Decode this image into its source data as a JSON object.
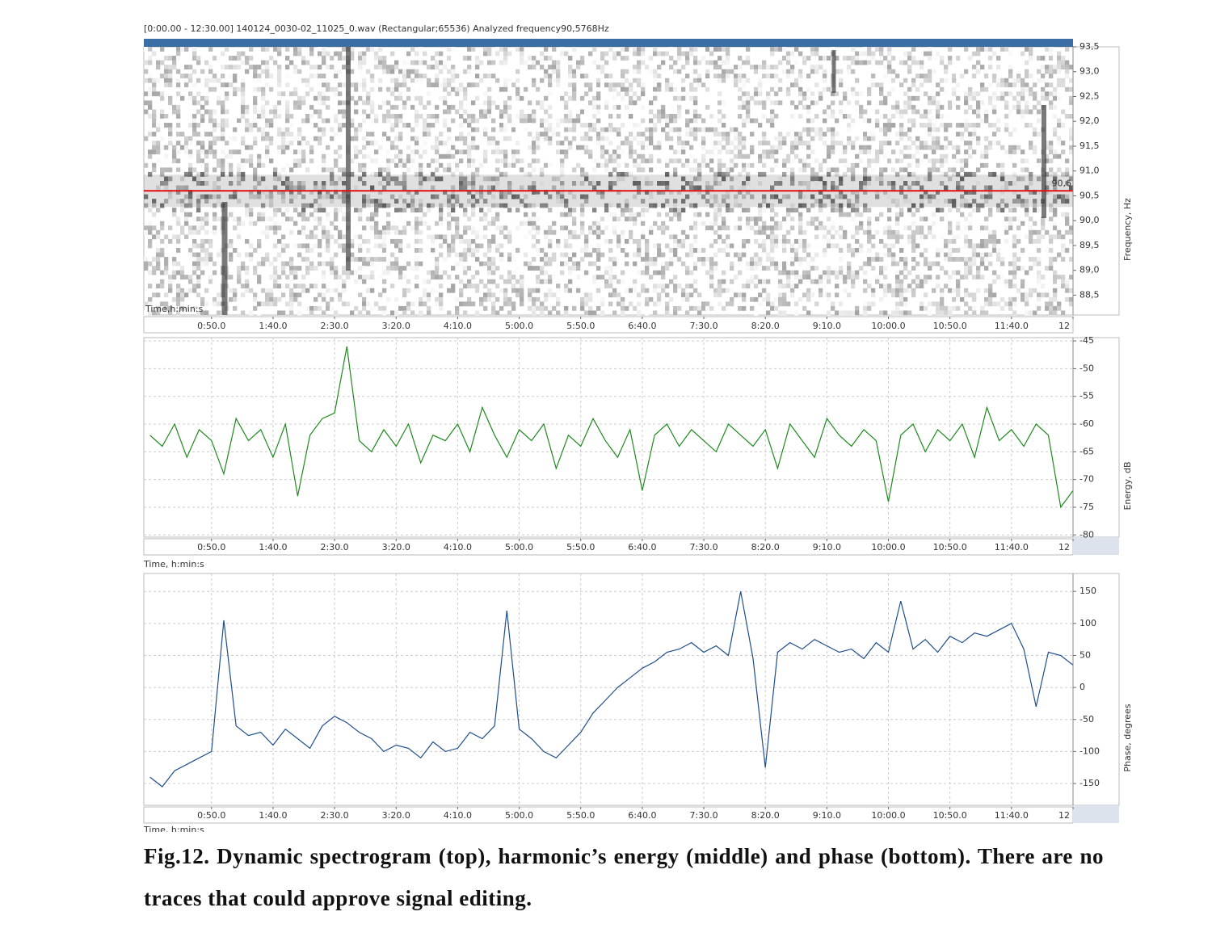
{
  "chart_data": [
    {
      "type": "spectrogram",
      "title": "[0:00.00 - 12:30.00] 140124_0030-02_11025_0.wav (Rectangular;65536)     Analyzed frequency90,5768Hz",
      "xlabel": "Time,h:min:s",
      "ylabel": "Frequency, Hz",
      "xlim": [
        -5,
        750
      ],
      "xticks": [
        {
          "value": 50,
          "label": "0:50.0"
        },
        {
          "value": 100,
          "label": "1:40.0"
        },
        {
          "value": 150,
          "label": "2:30.0"
        },
        {
          "value": 200,
          "label": "3:20.0"
        },
        {
          "value": 250,
          "label": "4:10.0"
        },
        {
          "value": 300,
          "label": "5:00.0"
        },
        {
          "value": 350,
          "label": "5:50.0"
        },
        {
          "value": 400,
          "label": "6:40.0"
        },
        {
          "value": 450,
          "label": "7:30.0"
        },
        {
          "value": 500,
          "label": "8:20.0"
        },
        {
          "value": 550,
          "label": "9:10.0"
        },
        {
          "value": 600,
          "label": "10:00.0"
        },
        {
          "value": 650,
          "label": "10:50.0"
        },
        {
          "value": 700,
          "label": "11:40.0"
        },
        {
          "value": 750,
          "label": "12"
        }
      ],
      "ylim": [
        88.1,
        93.5
      ],
      "yticks": [
        {
          "value": 88.5,
          "label": "88,5"
        },
        {
          "value": 89,
          "label": "89,0"
        },
        {
          "value": 89.5,
          "label": "89,5"
        },
        {
          "value": 90,
          "label": "90,0"
        },
        {
          "value": 90.5,
          "label": "90,5"
        },
        {
          "value": 91,
          "label": "91,0"
        },
        {
          "value": 91.5,
          "label": "91,5"
        },
        {
          "value": 92,
          "label": "92,0"
        },
        {
          "value": 92.5,
          "label": "92,5"
        },
        {
          "value": 93,
          "label": "93,0"
        },
        {
          "value": 93.5,
          "label": "93,5"
        }
      ],
      "marker_value": 90.6,
      "marker_label": "90,6",
      "marker_color": "#e01010"
    },
    {
      "type": "line",
      "xlabel": "Time, h:min:s",
      "ylabel": "Energy, dB",
      "xlim": [
        -5,
        750
      ],
      "xticks": [
        {
          "value": 50,
          "label": "0:50.0"
        },
        {
          "value": 100,
          "label": "1:40.0"
        },
        {
          "value": 150,
          "label": "2:30.0"
        },
        {
          "value": 200,
          "label": "3:20.0"
        },
        {
          "value": 250,
          "label": "4:10.0"
        },
        {
          "value": 300,
          "label": "5:00.0"
        },
        {
          "value": 350,
          "label": "5:50.0"
        },
        {
          "value": 400,
          "label": "6:40.0"
        },
        {
          "value": 450,
          "label": "7:30.0"
        },
        {
          "value": 500,
          "label": "8:20.0"
        },
        {
          "value": 550,
          "label": "9:10.0"
        },
        {
          "value": 600,
          "label": "10:00.0"
        },
        {
          "value": 650,
          "label": "10:50.0"
        },
        {
          "value": 700,
          "label": "11:40.0"
        },
        {
          "value": 750,
          "label": "12"
        }
      ],
      "ylim": [
        -80.4,
        -44.4
      ],
      "yticks": [
        -80,
        -75,
        -70,
        -65,
        -60,
        -55,
        -50,
        -45
      ],
      "grid": true,
      "x": [
        0,
        10,
        20,
        30,
        40,
        50,
        60,
        70,
        80,
        90,
        100,
        110,
        120,
        130,
        140,
        150,
        160,
        170,
        180,
        190,
        200,
        210,
        220,
        230,
        240,
        250,
        260,
        270,
        280,
        290,
        300,
        310,
        320,
        330,
        340,
        350,
        360,
        370,
        380,
        390,
        400,
        410,
        420,
        430,
        440,
        450,
        460,
        470,
        480,
        490,
        500,
        510,
        520,
        530,
        540,
        550,
        560,
        570,
        580,
        590,
        600,
        610,
        620,
        630,
        640,
        650,
        660,
        670,
        680,
        690,
        700,
        710,
        720,
        730,
        740,
        750
      ],
      "series": [
        {
          "color": "#1e8a1e",
          "values": [
            -62,
            -64,
            -60,
            -66,
            -61,
            -63,
            -69,
            -59,
            -63,
            -61,
            -66,
            -60,
            -73,
            -62,
            -59,
            -58,
            -46,
            -63,
            -65,
            -61,
            -64,
            -60,
            -67,
            -62,
            -63,
            -60,
            -65,
            -57,
            -62,
            -66,
            -61,
            -63,
            -60,
            -68,
            -62,
            -64,
            -59,
            -63,
            -66,
            -61,
            -72,
            -62,
            -60,
            -64,
            -61,
            -63,
            -65,
            -60,
            -62,
            -64,
            -61,
            -68,
            -60,
            -63,
            -66,
            -59,
            -62,
            -64,
            -61,
            -63,
            -74,
            -62,
            -60,
            -65,
            -61,
            -63,
            -60,
            -66,
            -57,
            -63,
            -61,
            -64,
            -60,
            -62,
            -75,
            -72
          ]
        }
      ]
    },
    {
      "type": "line",
      "xlabel": "Time, h:min:s",
      "ylabel": "Phase, degrees",
      "xlim": [
        -5,
        750
      ],
      "xticks": [
        {
          "value": 50,
          "label": "0:50.0"
        },
        {
          "value": 100,
          "label": "1:40.0"
        },
        {
          "value": 150,
          "label": "2:30.0"
        },
        {
          "value": 200,
          "label": "3:20.0"
        },
        {
          "value": 250,
          "label": "4:10.0"
        },
        {
          "value": 300,
          "label": "5:00.0"
        },
        {
          "value": 350,
          "label": "5:50.0"
        },
        {
          "value": 400,
          "label": "6:40.0"
        },
        {
          "value": 450,
          "label": "7:30.0"
        },
        {
          "value": 500,
          "label": "8:20.0"
        },
        {
          "value": 550,
          "label": "9:10.0"
        },
        {
          "value": 600,
          "label": "10:00.0"
        },
        {
          "value": 650,
          "label": "10:50.0"
        },
        {
          "value": 700,
          "label": "11:40.0"
        },
        {
          "value": 750,
          "label": "12"
        }
      ],
      "ylim": [
        -184,
        178
      ],
      "yticks": [
        -150,
        -100,
        -50,
        0,
        50,
        100,
        150
      ],
      "grid": true,
      "x": [
        0,
        10,
        20,
        30,
        40,
        50,
        60,
        70,
        80,
        90,
        100,
        110,
        120,
        130,
        140,
        150,
        160,
        170,
        180,
        190,
        200,
        210,
        220,
        230,
        240,
        250,
        260,
        270,
        280,
        290,
        300,
        310,
        320,
        330,
        340,
        350,
        360,
        370,
        380,
        390,
        400,
        410,
        420,
        430,
        440,
        450,
        460,
        470,
        480,
        490,
        500,
        510,
        520,
        530,
        540,
        550,
        560,
        570,
        580,
        590,
        600,
        610,
        620,
        630,
        640,
        650,
        660,
        670,
        680,
        690,
        700,
        710,
        720,
        730,
        740,
        750
      ],
      "series": [
        {
          "color": "#1f4e8c",
          "values": [
            -140,
            -155,
            -130,
            -120,
            -110,
            -100,
            105,
            -60,
            -75,
            -70,
            -90,
            -65,
            -80,
            -95,
            -60,
            -45,
            -55,
            -70,
            -80,
            -100,
            -90,
            -95,
            -110,
            -85,
            -100,
            -95,
            -70,
            -80,
            -60,
            120,
            -65,
            -80,
            -100,
            -110,
            -90,
            -70,
            -40,
            -20,
            0,
            15,
            30,
            40,
            55,
            60,
            70,
            55,
            65,
            50,
            150,
            45,
            -125,
            55,
            70,
            60,
            75,
            65,
            55,
            60,
            45,
            70,
            55,
            135,
            60,
            75,
            55,
            80,
            70,
            85,
            80,
            90,
            100,
            60,
            -30,
            55,
            50,
            35
          ]
        }
      ]
    }
  ],
  "caption": "Fig.12. Dynamic spectrogram (top), harmonic’s energy (middle) and phase (bottom). There are no traces that could approve signal editing."
}
